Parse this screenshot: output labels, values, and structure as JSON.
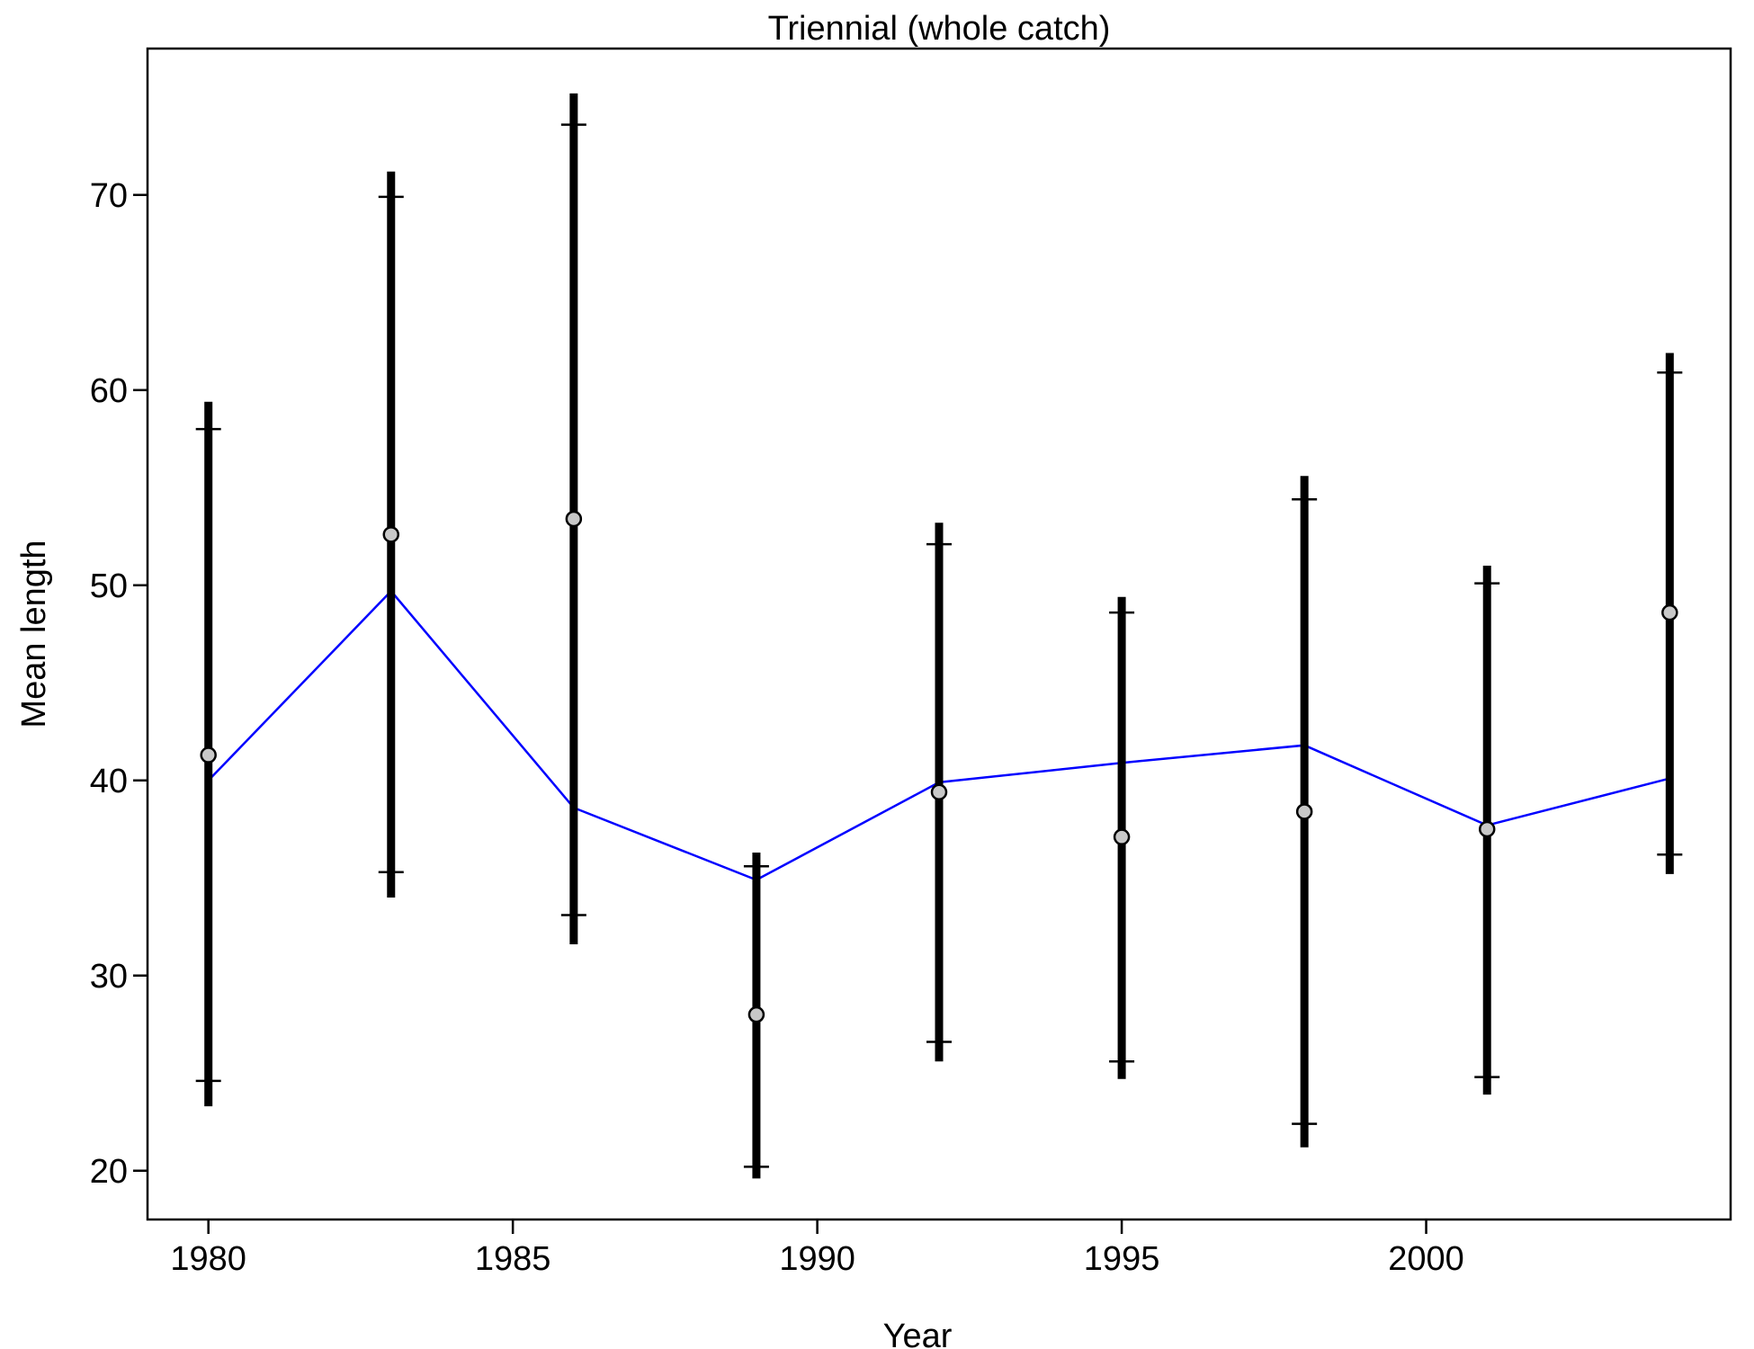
{
  "chart_data": {
    "type": "scatter",
    "title": "Triennial (whole catch)",
    "xlabel": "Year",
    "ylabel": "Mean length",
    "xlim": [
      1979,
      2005
    ],
    "ylim": [
      17.5,
      77.5
    ],
    "xticks": [
      1980,
      1985,
      1990,
      1995,
      2000
    ],
    "yticks": [
      20,
      30,
      40,
      50,
      60,
      70
    ],
    "grid": false,
    "legend": "none",
    "colors": {
      "observed_point_fill": "#c8c8c8",
      "interval_bar": "#000000",
      "expected_line": "#0000ff"
    },
    "series": [
      {
        "kind": "observed_with_intervals",
        "x": [
          1980,
          1983,
          1986,
          1989,
          1992,
          1995,
          1998,
          2001,
          2004
        ],
        "y": [
          41.3,
          52.6,
          53.4,
          28.0,
          39.4,
          37.1,
          38.4,
          37.5,
          48.6
        ],
        "outer_low": [
          23.3,
          34.0,
          31.6,
          19.6,
          25.6,
          24.7,
          21.2,
          23.9,
          35.2
        ],
        "outer_high": [
          59.4,
          71.2,
          75.2,
          36.3,
          53.2,
          49.4,
          55.6,
          51.0,
          61.9
        ],
        "inner_low": [
          24.6,
          35.3,
          33.1,
          20.2,
          26.6,
          25.6,
          22.4,
          24.8,
          36.2
        ],
        "inner_high": [
          58.0,
          69.9,
          73.6,
          35.6,
          52.1,
          48.6,
          54.4,
          50.1,
          60.9
        ]
      },
      {
        "kind": "expected_line",
        "x": [
          1980,
          1983,
          1986,
          1989,
          1992,
          1995,
          1998,
          2001,
          2004
        ],
        "y": [
          40.0,
          49.7,
          38.6,
          34.9,
          39.9,
          40.9,
          41.8,
          37.7,
          40.1
        ]
      }
    ]
  }
}
